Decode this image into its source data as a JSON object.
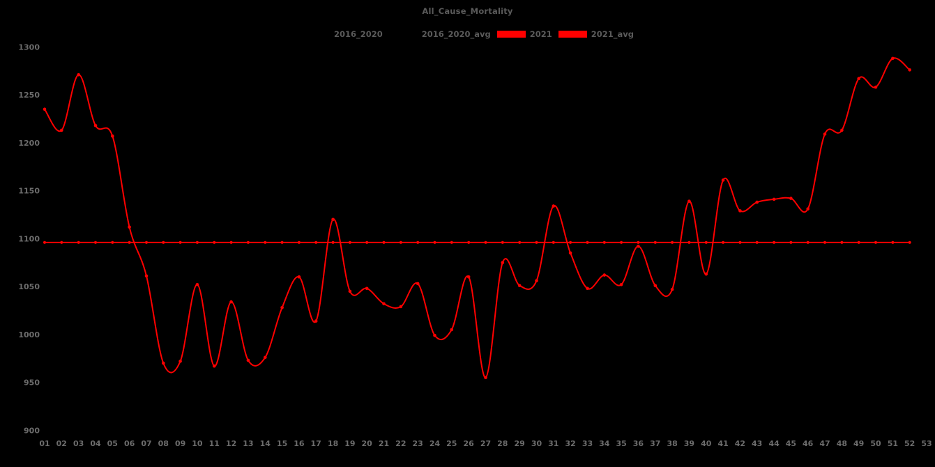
{
  "page": {
    "background_color": "#000000",
    "title_color": "#5a5a5a",
    "tick_label_color": "#6c6c6c",
    "accent_color": "#ff0000"
  },
  "chart_data": {
    "type": "line",
    "title": "All_Cause_Mortality",
    "xlabel": "",
    "ylabel": "",
    "ylim": [
      900,
      1300
    ],
    "yticks": [
      900,
      950,
      1000,
      1050,
      1100,
      1150,
      1200,
      1250,
      1300
    ],
    "x_tick_labels": [
      "01",
      "02",
      "03",
      "04",
      "05",
      "06",
      "07",
      "08",
      "09",
      "10",
      "11",
      "12",
      "13",
      "14",
      "15",
      "16",
      "17",
      "18",
      "19",
      "20",
      "21",
      "22",
      "23",
      "24",
      "25",
      "26",
      "27",
      "28",
      "29",
      "30",
      "31",
      "32",
      "33",
      "34",
      "35",
      "36",
      "37",
      "38",
      "39",
      "40",
      "41",
      "42",
      "43",
      "44",
      "45",
      "46",
      "47",
      "48",
      "49",
      "50",
      "51",
      "52",
      "53"
    ],
    "grid": false,
    "legend_position": "top-center",
    "legend": [
      {
        "label": "2016_2020",
        "color": "#000000"
      },
      {
        "label": "2016_2020_avg",
        "color": "#000000"
      },
      {
        "label": "2021",
        "color": "#ff0000"
      },
      {
        "label": "2021_avg",
        "color": "#ff0000"
      }
    ],
    "note": "2016_2020 and 2016_2020_avg series are drawn in black and invisible on the black background; no values are readable for them.",
    "series": [
      {
        "name": "2021",
        "color": "#ff0000",
        "marker": "circle",
        "smooth": true,
        "weeks": [
          "01",
          "02",
          "03",
          "04",
          "05",
          "06",
          "07",
          "08",
          "09",
          "10",
          "11",
          "12",
          "13",
          "14",
          "15",
          "16",
          "17",
          "18",
          "19",
          "20",
          "21",
          "22",
          "23",
          "24",
          "25",
          "26",
          "27",
          "28",
          "29",
          "30",
          "31",
          "32",
          "33",
          "34",
          "35",
          "36",
          "37",
          "38",
          "39",
          "40",
          "41",
          "42",
          "43",
          "44",
          "45",
          "46",
          "47",
          "48",
          "49",
          "50",
          "51",
          "52"
        ],
        "values": [
          1235,
          1213,
          1271,
          1218,
          1207,
          1112,
          1061,
          970,
          972,
          1052,
          967,
          1034,
          973,
          976,
          1028,
          1060,
          1014,
          1120,
          1045,
          1048,
          1032,
          1029,
          1053,
          999,
          1005,
          1060,
          955,
          1075,
          1051,
          1056,
          1134,
          1085,
          1048,
          1062,
          1052,
          1092,
          1051,
          1047,
          1139,
          1063,
          1161,
          1129,
          1138,
          1141,
          1142,
          1131,
          1209,
          1213,
          1267,
          1258,
          1288,
          1276
        ]
      },
      {
        "name": "2021_avg",
        "color": "#ff0000",
        "marker": "circle",
        "constant_value": 1096,
        "week_count": 52
      }
    ]
  }
}
